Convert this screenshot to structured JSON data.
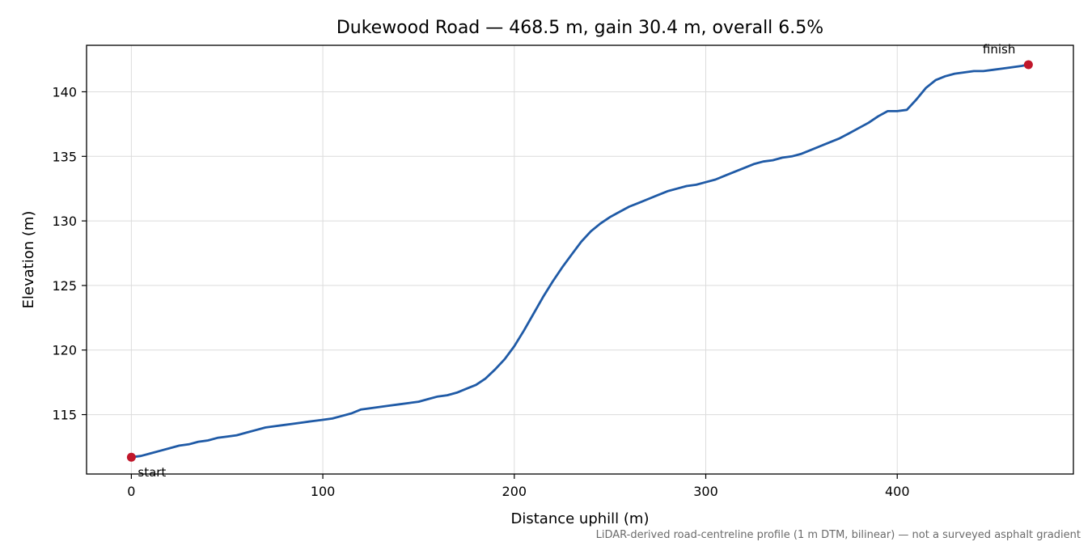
{
  "chart_data": {
    "type": "line",
    "title": "Dukewood Road — 468.5 m, gain 30.4 m, overall 6.5%",
    "xlabel": "Distance uphill (m)",
    "ylabel": "Elevation (m)",
    "xlim": [
      -23.4,
      492.0
    ],
    "ylim": [
      110.4,
      143.6
    ],
    "xticks": [
      0,
      100,
      200,
      300,
      400
    ],
    "yticks": [
      115,
      120,
      125,
      130,
      135,
      140
    ],
    "grid": true,
    "line_color": "#1f5aa6",
    "marker_color": "#c0172b",
    "series": [
      {
        "x": [
          0,
          5,
          10,
          15,
          20,
          25,
          30,
          35,
          40,
          45,
          50,
          55,
          60,
          65,
          70,
          75,
          80,
          85,
          90,
          95,
          100,
          105,
          110,
          115,
          120,
          125,
          130,
          135,
          140,
          145,
          150,
          155,
          160,
          165,
          170,
          175,
          180,
          185,
          190,
          195,
          200,
          205,
          210,
          215,
          220,
          225,
          230,
          235,
          240,
          245,
          250,
          255,
          260,
          265,
          270,
          275,
          280,
          285,
          290,
          295,
          300,
          305,
          310,
          315,
          320,
          325,
          330,
          335,
          340,
          345,
          350,
          355,
          360,
          365,
          370,
          375,
          380,
          385,
          390,
          395,
          400,
          405,
          410,
          415,
          420,
          425,
          430,
          435,
          440,
          445,
          450,
          455,
          460,
          465,
          468.5
        ],
        "y": [
          111.7,
          111.8,
          112.0,
          112.2,
          112.4,
          112.6,
          112.7,
          112.9,
          113.0,
          113.2,
          113.3,
          113.4,
          113.6,
          113.8,
          114.0,
          114.1,
          114.2,
          114.3,
          114.4,
          114.5,
          114.6,
          114.7,
          114.9,
          115.1,
          115.4,
          115.5,
          115.6,
          115.7,
          115.8,
          115.9,
          116.0,
          116.2,
          116.4,
          116.5,
          116.7,
          117.0,
          117.3,
          117.8,
          118.5,
          119.3,
          120.3,
          121.5,
          122.8,
          124.1,
          125.3,
          126.4,
          127.4,
          128.4,
          129.2,
          129.8,
          130.3,
          130.7,
          131.1,
          131.4,
          131.7,
          132.0,
          132.3,
          132.5,
          132.7,
          132.8,
          133.0,
          133.2,
          133.5,
          133.8,
          134.1,
          134.4,
          134.6,
          134.7,
          134.9,
          135.0,
          135.2,
          135.5,
          135.8,
          136.1,
          136.4,
          136.8,
          137.2,
          137.6,
          138.1,
          138.5,
          138.5,
          138.6,
          139.4,
          140.3,
          140.9,
          141.2,
          141.4,
          141.5,
          141.6,
          141.6,
          141.7,
          141.8,
          141.9,
          142.0,
          142.1
        ]
      }
    ],
    "annotations": [
      {
        "text": "start",
        "x": 0,
        "y": 111.7
      },
      {
        "text": "finish",
        "x": 468.5,
        "y": 142.1
      }
    ],
    "footnote": "LiDAR-derived road-centreline profile (1 m DTM, bilinear) — not a surveyed asphalt gradient"
  }
}
